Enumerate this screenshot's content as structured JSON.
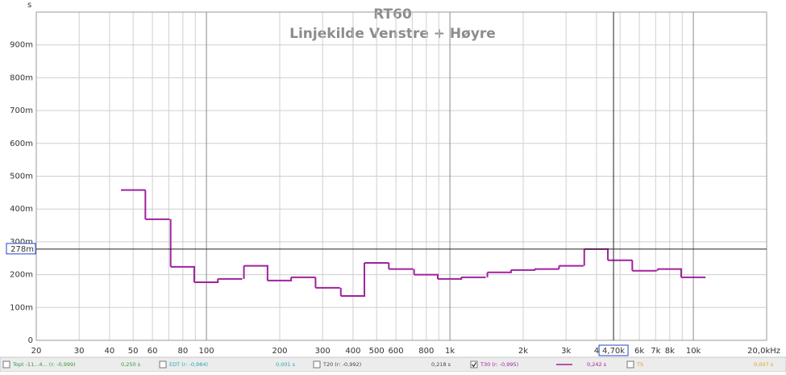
{
  "chart_data": {
    "type": "step",
    "title": "RT60",
    "subtitle": "Linjekilde Venstre + Høyre",
    "y_unit": "s",
    "log_x": true,
    "grid": true,
    "xlim": [
      20,
      20000
    ],
    "ylim": [
      0,
      1
    ],
    "xticks": [
      20,
      30,
      40,
      50,
      60,
      80,
      100,
      200,
      300,
      400,
      500,
      600,
      800,
      {
        "value": 1000,
        "label": "1k"
      },
      {
        "value": 2000,
        "label": "2k"
      },
      {
        "value": 3000,
        "label": "3k"
      },
      {
        "value": 4000,
        "label": "4"
      },
      {
        "value": 6000,
        "label": "6k"
      },
      {
        "value": 7000,
        "label": "7k"
      },
      {
        "value": 8000,
        "label": "8k"
      },
      {
        "value": 10000,
        "label": "10k"
      },
      {
        "value": 20000,
        "label": "20,0kHz"
      }
    ],
    "x_minor_grid": [
      70,
      90,
      700,
      900,
      5000,
      9000
    ],
    "yticks": [
      0,
      {
        "value": 0.1,
        "label": "100m"
      },
      {
        "value": 0.2,
        "label": "200m"
      },
      {
        "value": 0.3,
        "label": "300m"
      },
      {
        "value": 0.4,
        "label": "400m"
      },
      {
        "value": 0.5,
        "label": "500m"
      },
      {
        "value": 0.6,
        "label": "600m"
      },
      {
        "value": 0.7,
        "label": "700m"
      },
      {
        "value": 0.8,
        "label": "800m"
      },
      {
        "value": 0.9,
        "label": "900m"
      }
    ],
    "x": [
      50,
      63,
      80,
      100,
      125,
      160,
      200,
      250,
      315,
      400,
      500,
      630,
      800,
      1000,
      1250,
      1600,
      2000,
      2500,
      3150,
      4000,
      5000,
      6300,
      8000,
      10000
    ],
    "series": [
      {
        "name": "T30 (r: -0,995)",
        "color": "#a0229c",
        "values": [
          0.458,
          0.369,
          0.224,
          0.177,
          0.187,
          0.227,
          0.182,
          0.192,
          0.16,
          0.135,
          0.236,
          0.217,
          0.2,
          0.187,
          0.192,
          0.207,
          0.214,
          0.217,
          0.227,
          0.278,
          0.244,
          0.212,
          0.217,
          0.192
        ]
      }
    ],
    "cursor": {
      "x": {
        "value": 4700,
        "label": "4,70k"
      },
      "y": {
        "value": 0.278,
        "label": "278m"
      }
    },
    "legend_items": [
      {
        "name": "Topt -11...4... (r: -0,999)",
        "label": "0,250 s",
        "checked": false,
        "color": "#2e9a3c"
      },
      {
        "name": "EDT (r: -0,984)",
        "label": "0,001 s",
        "checked": false,
        "color": "#22aab4"
      },
      {
        "name": "T20 (r: -0,992)",
        "label": "0,218 s",
        "checked": false,
        "color": "#444444"
      },
      {
        "name": "T30 (r: -0,995)",
        "label": "0,242 s",
        "checked": true,
        "color": "#a0229c"
      },
      {
        "name": "TS",
        "label": "0,007 s",
        "checked": false,
        "color": "#e0a020"
      }
    ]
  }
}
